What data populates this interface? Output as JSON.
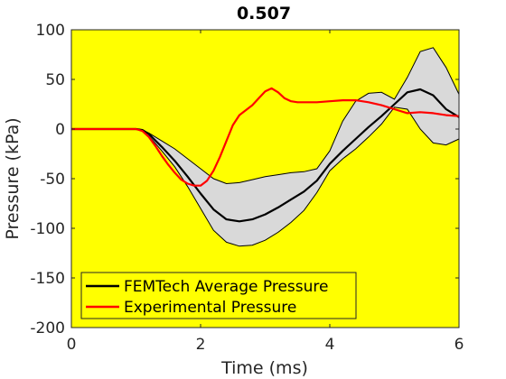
{
  "chart_data": {
    "type": "line",
    "title": "0.507",
    "xlabel": "Time (ms)",
    "ylabel": "Pressure (kPa)",
    "xlim": [
      0,
      6
    ],
    "ylim": [
      -200,
      100
    ],
    "xticks": [
      0,
      2,
      4,
      6
    ],
    "yticks": [
      -200,
      -150,
      -100,
      -50,
      0,
      50,
      100
    ],
    "grid": false,
    "legend_position": "bottom-left",
    "colors": {
      "axes_background": "#ffff00",
      "band_fill": "#d9d9d9",
      "average": "#000000",
      "experimental": "#ff0000"
    },
    "band": {
      "x": [
        0,
        0.5,
        1.0,
        1.1,
        1.2,
        1.4,
        1.6,
        1.8,
        2.0,
        2.2,
        2.4,
        2.6,
        2.8,
        3.0,
        3.2,
        3.4,
        3.6,
        3.8,
        4.0,
        4.2,
        4.4,
        4.6,
        4.8,
        5.0,
        5.2,
        5.4,
        5.6,
        5.8,
        6.0
      ],
      "upper": [
        0,
        0,
        0,
        -1,
        -4,
        -12,
        -20,
        -30,
        -40,
        -50,
        -55,
        -54,
        -51,
        -48,
        -46,
        -44,
        -43,
        -40,
        -22,
        8,
        28,
        36,
        37,
        30,
        52,
        78,
        82,
        62,
        35
      ],
      "lower": [
        0,
        0,
        0,
        -2,
        -7,
        -22,
        -38,
        -58,
        -80,
        -102,
        -114,
        -118,
        -117,
        -112,
        -104,
        -94,
        -82,
        -64,
        -42,
        -30,
        -20,
        -8,
        5,
        22,
        20,
        0,
        -14,
        -16,
        -10
      ]
    },
    "series": [
      {
        "name": "FEMTech Average Pressure",
        "x": [
          0,
          0.5,
          1.0,
          1.1,
          1.2,
          1.4,
          1.6,
          1.8,
          2.0,
          2.2,
          2.4,
          2.6,
          2.8,
          3.0,
          3.2,
          3.4,
          3.6,
          3.8,
          4.0,
          4.2,
          4.4,
          4.6,
          4.8,
          5.0,
          5.2,
          5.4,
          5.6,
          5.8,
          6.0
        ],
        "values": [
          0,
          0,
          0,
          -1,
          -5,
          -18,
          -32,
          -48,
          -65,
          -81,
          -91,
          -93,
          -91,
          -86,
          -79,
          -71,
          -63,
          -52,
          -35,
          -22,
          -10,
          2,
          13,
          25,
          37,
          40,
          34,
          20,
          12
        ]
      },
      {
        "name": "Experimental Pressure",
        "x": [
          0,
          0.5,
          1.0,
          1.1,
          1.2,
          1.3,
          1.4,
          1.5,
          1.6,
          1.7,
          1.8,
          1.9,
          2.0,
          2.1,
          2.2,
          2.3,
          2.4,
          2.5,
          2.6,
          2.7,
          2.8,
          2.9,
          3.0,
          3.1,
          3.2,
          3.3,
          3.4,
          3.5,
          3.6,
          3.8,
          4.0,
          4.2,
          4.4,
          4.6,
          4.8,
          5.0,
          5.2,
          5.4,
          5.6,
          5.8,
          6.0
        ],
        "values": [
          0,
          0,
          0,
          -2,
          -8,
          -17,
          -27,
          -36,
          -44,
          -51,
          -55,
          -57,
          -57,
          -52,
          -42,
          -28,
          -12,
          4,
          14,
          19,
          24,
          31,
          38,
          41,
          37,
          31,
          28,
          27,
          27,
          27,
          28,
          29,
          29,
          27,
          24,
          20,
          16,
          17,
          16,
          14,
          13
        ]
      }
    ],
    "legend": [
      "FEMTech Average Pressure",
      "Experimental Pressure"
    ]
  }
}
